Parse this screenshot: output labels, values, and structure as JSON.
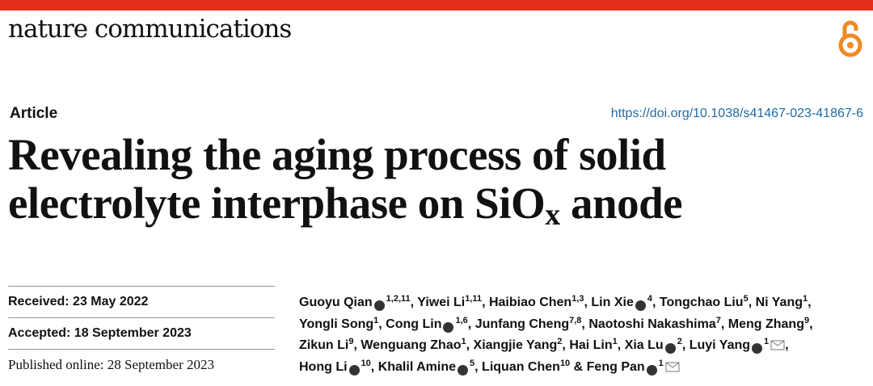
{
  "header": {
    "journal": "nature communications",
    "article_type": "Article",
    "doi": "https://doi.org/10.1038/s41467-023-41867-6"
  },
  "title": {
    "text": "Revealing the aging process of solid electrolyte interphase on SiO",
    "subscript": "x",
    "suffix": "anode"
  },
  "dates": [
    "Received: 23 May 2022",
    "Accepted: 18 September 2023",
    "Published online: 28 September 2023"
  ],
  "authors_separator": ",",
  "authors_conjunction": "&",
  "authors": [
    {
      "name": "Guoyu Qian",
      "affil": "1,2,11",
      "orcid": true,
      "email": false
    },
    {
      "name": "Yiwei Li",
      "affil": "1,11",
      "orcid": false,
      "email": false
    },
    {
      "name": "Haibiao Chen",
      "affil": "1,3",
      "orcid": false,
      "email": false
    },
    {
      "name": "Lin Xie",
      "affil": "4",
      "orcid": true,
      "email": false
    },
    {
      "name": "Tongchao Liu",
      "affil": "5",
      "orcid": false,
      "email": false
    },
    {
      "name": "Ni Yang",
      "affil": "1",
      "orcid": false,
      "email": false
    },
    {
      "name": "Yongli Song",
      "affil": "1",
      "orcid": false,
      "email": false
    },
    {
      "name": "Cong Lin",
      "affil": "1,6",
      "orcid": true,
      "email": false
    },
    {
      "name": "Junfang Cheng",
      "affil": "7,8",
      "orcid": false,
      "email": false
    },
    {
      "name": "Naotoshi Nakashima",
      "affil": "7",
      "orcid": false,
      "email": false
    },
    {
      "name": "Meng Zhang",
      "affil": "9",
      "orcid": false,
      "email": false
    },
    {
      "name": "Zikun Li",
      "affil": "9",
      "orcid": false,
      "email": false
    },
    {
      "name": "Wenguang Zhao",
      "affil": "1",
      "orcid": false,
      "email": false
    },
    {
      "name": "Xiangjie Yang",
      "affil": "2",
      "orcid": false,
      "email": false
    },
    {
      "name": "Hai Lin",
      "affil": "1",
      "orcid": false,
      "email": false
    },
    {
      "name": "Xia Lu",
      "affil": "2",
      "orcid": true,
      "email": false
    },
    {
      "name": "Luyi Yang",
      "affil": "1",
      "orcid": true,
      "email": true
    },
    {
      "name": "Hong Li",
      "affil": "10",
      "orcid": true,
      "email": false
    },
    {
      "name": "Khalil Amine",
      "affil": "5",
      "orcid": true,
      "email": false
    },
    {
      "name": "Liquan Chen",
      "affil": "10",
      "orcid": false,
      "email": false
    },
    {
      "name": "Feng Pan",
      "affil": "1",
      "orcid": true,
      "email": true
    }
  ]
}
